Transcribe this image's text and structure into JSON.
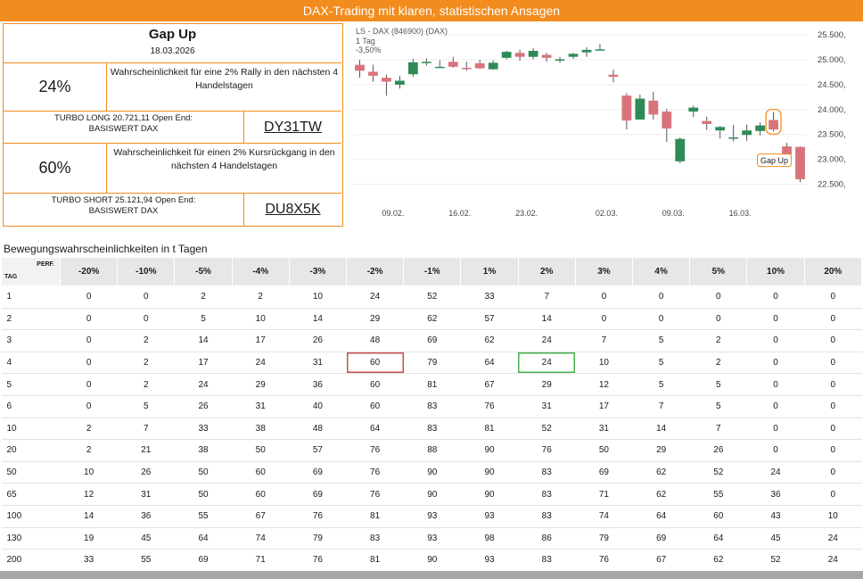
{
  "banner": {
    "title": "DAX-Trading mit klaren, statistischen Ansagen"
  },
  "signal": {
    "title": "Gap Up",
    "date": "18.03.2026"
  },
  "long": {
    "probability": "24%",
    "description": "Wahrscheinlichkeit für eine 2% Rally in den nächsten 4 Handelstagen",
    "product": "TURBO LONG 20.721,11 Open End:",
    "underlying": "BASISWERT DAX",
    "wkn": "DY31TW"
  },
  "short": {
    "probability": "60%",
    "description": "Wahrscheinlichkeit für einen 2% Kursrückgang in den nächsten 4 Handelstagen",
    "product": "TURBO SHORT 25.121,94 Open End:",
    "underlying": "BASISWERT DAX",
    "wkn": "DU8X5K"
  },
  "chart_data": {
    "type": "candlestick",
    "title": "LS - DAX (846900) (DAX)",
    "timeframe": "1 Tag",
    "change": "-3,50%",
    "annotation": "Gap Up",
    "x_tick_labels": [
      "09.02.",
      "16.02.",
      "23.02.",
      "02.03.",
      "09.03.",
      "16.03."
    ],
    "y_tick_labels": [
      "25.500,",
      "25.000,",
      "24.500,",
      "24.000,",
      "23.500,",
      "23.000,",
      "22.500,"
    ],
    "y_ticks": [
      25500,
      25000,
      24500,
      24000,
      23500,
      23000,
      22500
    ],
    "ylim": [
      22150,
      25700
    ],
    "candles": [
      {
        "o": 24900,
        "h": 25000,
        "l": 24640,
        "c": 24780
      },
      {
        "o": 24760,
        "h": 24900,
        "l": 24560,
        "c": 24680
      },
      {
        "o": 24640,
        "h": 24700,
        "l": 24280,
        "c": 24560
      },
      {
        "o": 24500,
        "h": 24680,
        "l": 24420,
        "c": 24580
      },
      {
        "o": 24710,
        "h": 25020,
        "l": 24660,
        "c": 24950
      },
      {
        "o": 24940,
        "h": 25030,
        "l": 24880,
        "c": 24960
      },
      {
        "o": 24860,
        "h": 24990,
        "l": 24840,
        "c": 24860
      },
      {
        "o": 24960,
        "h": 25060,
        "l": 24840,
        "c": 24860
      },
      {
        "o": 24840,
        "h": 24960,
        "l": 24780,
        "c": 24830
      },
      {
        "o": 24930,
        "h": 25000,
        "l": 24820,
        "c": 24830
      },
      {
        "o": 24810,
        "h": 24990,
        "l": 24800,
        "c": 24940
      },
      {
        "o": 25040,
        "h": 25180,
        "l": 25010,
        "c": 25160
      },
      {
        "o": 25140,
        "h": 25200,
        "l": 24980,
        "c": 25060
      },
      {
        "o": 25060,
        "h": 25230,
        "l": 25010,
        "c": 25180
      },
      {
        "o": 25100,
        "h": 25140,
        "l": 24960,
        "c": 25040
      },
      {
        "o": 25000,
        "h": 25060,
        "l": 24940,
        "c": 25010
      },
      {
        "o": 25060,
        "h": 25140,
        "l": 25020,
        "c": 25120
      },
      {
        "o": 25150,
        "h": 25250,
        "l": 25060,
        "c": 25200
      },
      {
        "o": 25200,
        "h": 25320,
        "l": 25180,
        "c": 25210
      },
      {
        "o": 24700,
        "h": 24800,
        "l": 24550,
        "c": 24660
      },
      {
        "o": 24280,
        "h": 24330,
        "l": 23600,
        "c": 23780
      },
      {
        "o": 23800,
        "h": 24300,
        "l": 23800,
        "c": 24220
      },
      {
        "o": 24180,
        "h": 24360,
        "l": 23800,
        "c": 23900
      },
      {
        "o": 23960,
        "h": 24010,
        "l": 23350,
        "c": 23620
      },
      {
        "o": 22960,
        "h": 23440,
        "l": 22920,
        "c": 23410
      },
      {
        "o": 23960,
        "h": 24080,
        "l": 23850,
        "c": 24040
      },
      {
        "o": 23770,
        "h": 23860,
        "l": 23590,
        "c": 23710
      },
      {
        "o": 23580,
        "h": 23670,
        "l": 23420,
        "c": 23650
      },
      {
        "o": 23420,
        "h": 23690,
        "l": 23360,
        "c": 23440
      },
      {
        "o": 23490,
        "h": 23700,
        "l": 23370,
        "c": 23580
      },
      {
        "o": 23570,
        "h": 23740,
        "l": 23480,
        "c": 23680
      },
      {
        "o": 23790,
        "h": 23950,
        "l": 23560,
        "c": 23600
      },
      {
        "o": 23260,
        "h": 23330,
        "l": 23090,
        "c": 23100
      },
      {
        "o": 23250,
        "h": 23260,
        "l": 22540,
        "c": 22600
      }
    ]
  },
  "table": {
    "section_title": "Bewegungswahrscheinlichkeiten in t Tagen",
    "corner_perf": "PERF.",
    "corner_tag": "TAG",
    "headers": [
      "-20%",
      "-10%",
      "-5%",
      "-4%",
      "-3%",
      "-2%",
      "-1%",
      "1%",
      "2%",
      "3%",
      "4%",
      "5%",
      "10%",
      "20%"
    ],
    "rows": [
      {
        "day": "1",
        "values": [
          "0",
          "0",
          "2",
          "2",
          "10",
          "24",
          "52",
          "33",
          "7",
          "0",
          "0",
          "0",
          "0",
          "0"
        ]
      },
      {
        "day": "2",
        "values": [
          "0",
          "0",
          "5",
          "10",
          "14",
          "29",
          "62",
          "57",
          "14",
          "0",
          "0",
          "0",
          "0",
          "0"
        ]
      },
      {
        "day": "3",
        "values": [
          "0",
          "2",
          "14",
          "17",
          "26",
          "48",
          "69",
          "62",
          "24",
          "7",
          "5",
          "2",
          "0",
          "0"
        ]
      },
      {
        "day": "4",
        "values": [
          "0",
          "2",
          "17",
          "24",
          "31",
          "60",
          "79",
          "64",
          "24",
          "10",
          "5",
          "2",
          "0",
          "0"
        ]
      },
      {
        "day": "5",
        "values": [
          "0",
          "2",
          "24",
          "29",
          "36",
          "60",
          "81",
          "67",
          "29",
          "12",
          "5",
          "5",
          "0",
          "0"
        ]
      },
      {
        "day": "6",
        "values": [
          "0",
          "5",
          "26",
          "31",
          "40",
          "60",
          "83",
          "76",
          "31",
          "17",
          "7",
          "5",
          "0",
          "0"
        ]
      },
      {
        "day": "10",
        "values": [
          "2",
          "7",
          "33",
          "38",
          "48",
          "64",
          "83",
          "81",
          "52",
          "31",
          "14",
          "7",
          "0",
          "0"
        ]
      },
      {
        "day": "20",
        "values": [
          "2",
          "21",
          "38",
          "50",
          "57",
          "76",
          "88",
          "90",
          "76",
          "50",
          "29",
          "26",
          "0",
          "0"
        ]
      },
      {
        "day": "50",
        "values": [
          "10",
          "26",
          "50",
          "60",
          "69",
          "76",
          "90",
          "90",
          "83",
          "69",
          "62",
          "52",
          "24",
          "0"
        ]
      },
      {
        "day": "65",
        "values": [
          "12",
          "31",
          "50",
          "60",
          "69",
          "76",
          "90",
          "90",
          "83",
          "71",
          "62",
          "55",
          "36",
          "0"
        ]
      },
      {
        "day": "100",
        "values": [
          "14",
          "36",
          "55",
          "67",
          "76",
          "81",
          "93",
          "93",
          "83",
          "74",
          "64",
          "60",
          "43",
          "10"
        ]
      },
      {
        "day": "130",
        "values": [
          "19",
          "45",
          "64",
          "74",
          "79",
          "83",
          "93",
          "98",
          "86",
          "79",
          "69",
          "64",
          "45",
          "24"
        ]
      },
      {
        "day": "200",
        "values": [
          "33",
          "55",
          "69",
          "71",
          "76",
          "81",
          "90",
          "93",
          "83",
          "76",
          "67",
          "62",
          "52",
          "24"
        ]
      }
    ],
    "highlight_short": {
      "row": 3,
      "col": 5
    },
    "highlight_long": {
      "row": 3,
      "col": 8
    }
  },
  "colors": {
    "accent": "#f28c1e",
    "candle_up": "#2e8b57",
    "candle_down": "#d9737b",
    "header_bg": "#e7e7e7"
  }
}
